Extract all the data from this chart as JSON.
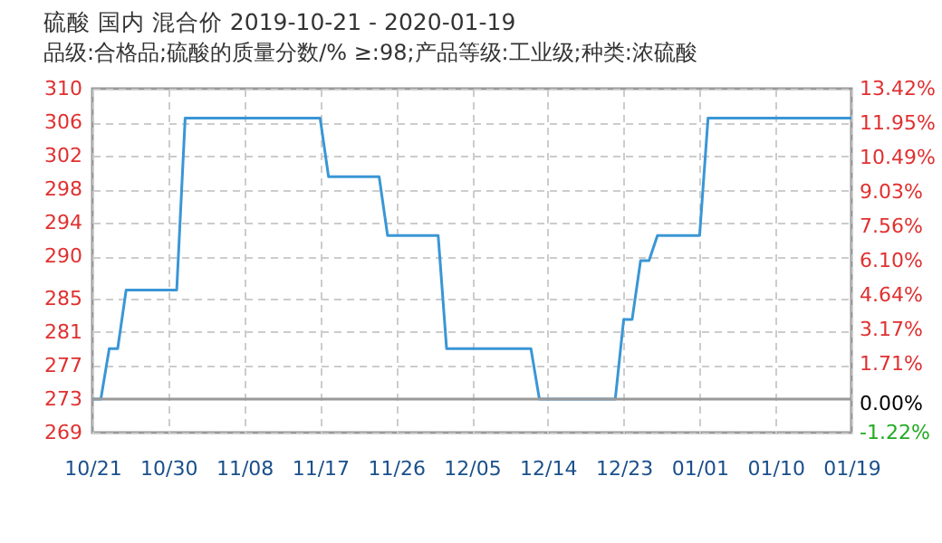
{
  "chart_data": {
    "type": "line",
    "title": "硫酸 国内 混合价 2019-10-21 - 2020-01-19",
    "subtitle": "品级:合格品;硫酸的质量分数/% ≥:98;产品等级:工业级;种类:浓硫酸",
    "x": [
      "2019-10-21",
      "2019-10-22",
      "2019-10-23",
      "2019-10-24",
      "2019-10-25",
      "2019-10-31",
      "2019-11-01",
      "2019-11-17",
      "2019-11-18",
      "2019-11-24",
      "2019-11-25",
      "2019-12-01",
      "2019-12-02",
      "2019-12-12",
      "2019-12-13",
      "2019-12-22",
      "2019-12-23",
      "2019-12-24",
      "2019-12-25",
      "2019-12-26",
      "2019-12-27",
      "2020-01-01",
      "2020-01-02",
      "2020-01-19"
    ],
    "series": [
      {
        "color": "#3a96d6",
        "values": [
          273,
          273,
          279,
          279,
          286,
          286,
          306.5,
          306.5,
          299.5,
          299.5,
          292.5,
          292.5,
          279,
          279,
          273,
          273,
          282.5,
          282.5,
          289.5,
          289.5,
          292.5,
          292.5,
          306.5,
          306.5
        ]
      }
    ],
    "xlim": [
      "2019-10-21",
      "2020-01-19"
    ],
    "xticks": [
      {
        "value": "2019-10-21",
        "label": "10/21"
      },
      {
        "value": "2019-10-30",
        "label": "10/30"
      },
      {
        "value": "2019-11-08",
        "label": "11/08"
      },
      {
        "value": "2019-11-17",
        "label": "11/17"
      },
      {
        "value": "2019-11-26",
        "label": "11/26"
      },
      {
        "value": "2019-12-05",
        "label": "12/05"
      },
      {
        "value": "2019-12-14",
        "label": "12/14"
      },
      {
        "value": "2019-12-23",
        "label": "12/23"
      },
      {
        "value": "2020-01-01",
        "label": "01/01"
      },
      {
        "value": "2020-01-10",
        "label": "01/10"
      },
      {
        "value": "2020-01-19",
        "label": "01/19"
      }
    ],
    "ylim": [
      269,
      310
    ],
    "yticks": [
      269,
      273,
      277,
      281,
      285,
      290,
      294,
      298,
      302,
      306,
      310
    ],
    "y2lim": [
      -1.22,
      13.42
    ],
    "y2ticks": [
      {
        "value": -1.22,
        "label": "-1.22%"
      },
      {
        "value": 0,
        "label": "0.00%"
      },
      {
        "value": 1.71,
        "label": "1.71%"
      },
      {
        "value": 3.17,
        "label": "3.17%"
      },
      {
        "value": 4.64,
        "label": "4.64%"
      },
      {
        "value": 6.1,
        "label": "6.10%"
      },
      {
        "value": 7.56,
        "label": "7.56%"
      },
      {
        "value": 9.03,
        "label": "9.03%"
      },
      {
        "value": 10.49,
        "label": "10.49%"
      },
      {
        "value": 11.95,
        "label": "11.95%"
      },
      {
        "value": 13.42,
        "label": "13.42%"
      }
    ],
    "ref_lines": [
      {
        "axis": "y",
        "value": 273,
        "color": "#999999"
      }
    ],
    "grid": true,
    "legend": false,
    "marker": "none",
    "line_style": "solid"
  }
}
